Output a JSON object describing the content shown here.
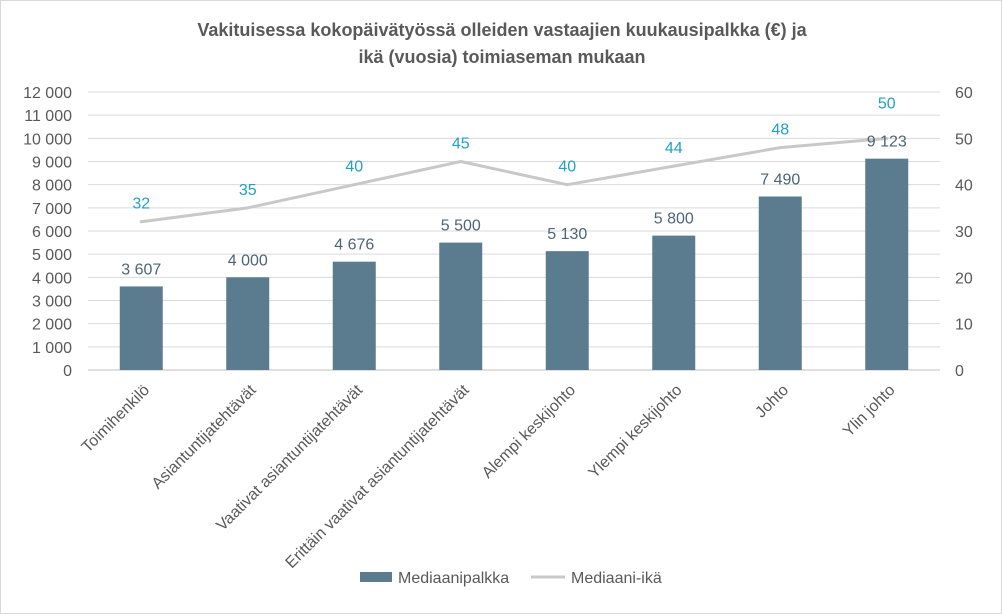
{
  "chart_data": {
    "type": "bar",
    "title": [
      "Vakituisessa kokopäivätyössä olleiden vastaajien kuukausipalkka (€) ja",
      "ikä (vuosia) toimiaseman mukaan"
    ],
    "categories": [
      "Toimihenkilö",
      "Asiantuntijatehtävät",
      "Vaativat asiantuntijatehtävät",
      "Erittäin vaativat asiantuntijatehtävät",
      "Alempi keskijohto",
      "Ylempi keskijohto",
      "Johto",
      "Ylin johto"
    ],
    "series": [
      {
        "name": "Mediaanipalkka",
        "type": "bar",
        "axis": "left",
        "values": [
          3607,
          4000,
          4676,
          5500,
          5130,
          5800,
          7490,
          9123
        ],
        "data_labels": [
          "3 607",
          "4 000",
          "4 676",
          "5 500",
          "5 130",
          "5 800",
          "7 490",
          "9 123"
        ],
        "color": "#5b7b8e",
        "label_color": "#4d6575"
      },
      {
        "name": "Mediaani-ikä",
        "type": "line",
        "axis": "right",
        "values": [
          32,
          35,
          40,
          45,
          40,
          44,
          48,
          50
        ],
        "data_labels": [
          "32",
          "35",
          "40",
          "45",
          "40",
          "44",
          "48",
          "50"
        ],
        "color": "#c8c8c8",
        "label_color": "#22a0c5"
      }
    ],
    "y_axis_left": {
      "ylim": [
        0,
        12000
      ],
      "tick_labels": [
        "0",
        "1 000",
        "2 000",
        "3 000",
        "4 000",
        "5 000",
        "6 000",
        "7 000",
        "8 000",
        "9 000",
        "10 000",
        "11 000",
        "12 000"
      ]
    },
    "y_axis_right": {
      "ylim": [
        0,
        60
      ],
      "tick_labels": [
        "0",
        "10",
        "20",
        "30",
        "40",
        "50",
        "60"
      ]
    },
    "grid": true,
    "legend": "bottom"
  }
}
